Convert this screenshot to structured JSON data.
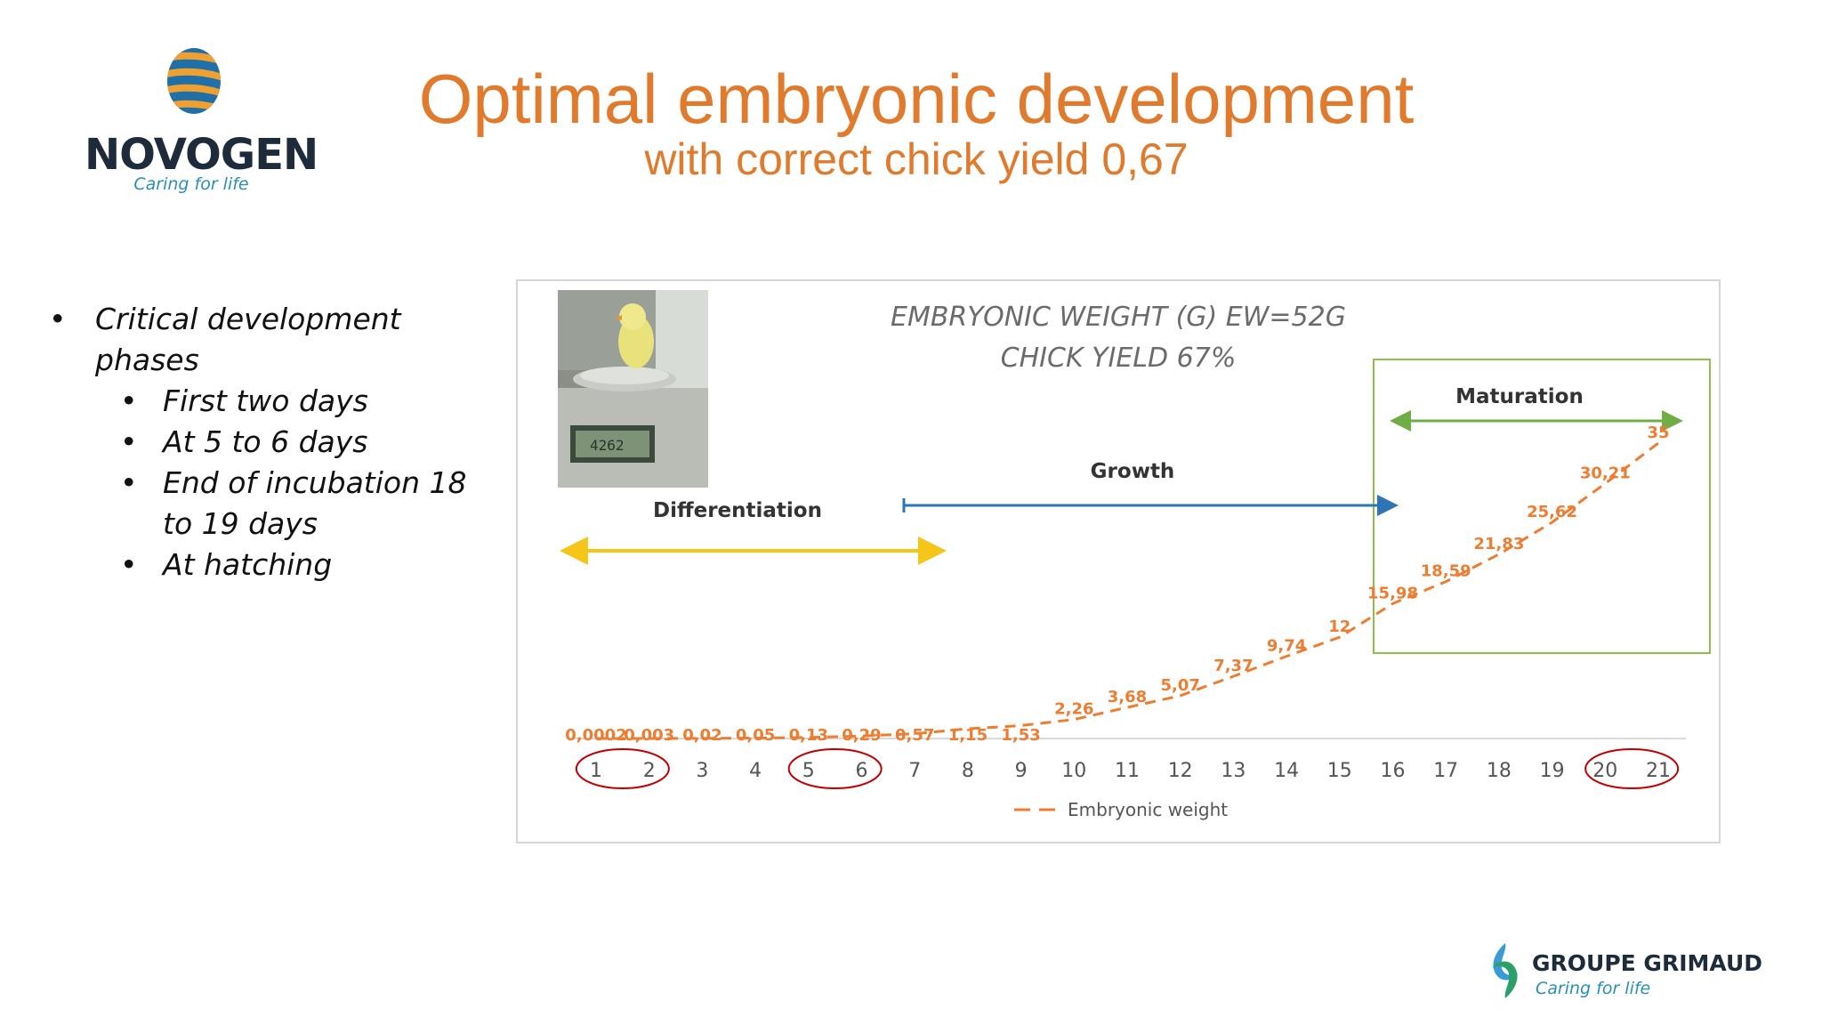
{
  "brand": {
    "name": "NOVOGEN",
    "tagline": "Caring for life"
  },
  "title": "Optimal embryonic development",
  "subtitle": "with correct chick yield 0,67",
  "bullets": {
    "main": "Critical development phases",
    "items": [
      "First two days",
      "At 5 to 6 days",
      "End of incubation 18 to 19 days",
      "At hatching"
    ]
  },
  "footer": {
    "group_name": "GROUPE GRIMAUD",
    "group_tagline": "Caring for life"
  },
  "chart_data": {
    "type": "line",
    "title": "EMBRYONIC WEIGHT (G) EW=52G",
    "subtitle": "CHICK YIELD 67%",
    "categories": [
      "1",
      "2",
      "3",
      "4",
      "5",
      "6",
      "7",
      "8",
      "9",
      "10",
      "11",
      "12",
      "13",
      "14",
      "15",
      "16",
      "17",
      "18",
      "19",
      "20",
      "21"
    ],
    "series": [
      {
        "name": "Embryonic weight",
        "values": [
          0.0002,
          0.003,
          0.02,
          0.05,
          0.13,
          0.29,
          0.57,
          1.15,
          1.53,
          2.26,
          3.68,
          5.07,
          7.37,
          9.74,
          12,
          15.98,
          18.59,
          21.83,
          25.62,
          30.21,
          35
        ],
        "labels": [
          "0,0002",
          "0,003",
          "0,02",
          "0,05",
          "0,13",
          "0,29",
          "0,57",
          "1,15",
          "1,53",
          "2,26",
          "3,68",
          "5,07",
          "7,37",
          "9,74",
          "12",
          "15,98",
          "18,59",
          "21,83",
          "25,62",
          "30,21",
          "35"
        ],
        "color": "#ed7d31",
        "line_style": "dashed"
      }
    ],
    "ylim": [
      0,
      35
    ],
    "grid": false,
    "legend": "bottom",
    "phases": [
      {
        "label": "Differentiation",
        "from_day": 1,
        "to_day": 7.5,
        "color": "#f5c518"
      },
      {
        "label": "Growth",
        "from_day": 7,
        "to_day": 16,
        "color": "#2e75b6"
      },
      {
        "label": "Maturation",
        "from_day": 16,
        "to_day": 21,
        "color": "#70ad47"
      }
    ],
    "highlighted_days": [
      [
        1,
        2
      ],
      [
        5,
        6
      ],
      [
        20,
        21
      ]
    ],
    "highlight_color": "#c00000"
  }
}
